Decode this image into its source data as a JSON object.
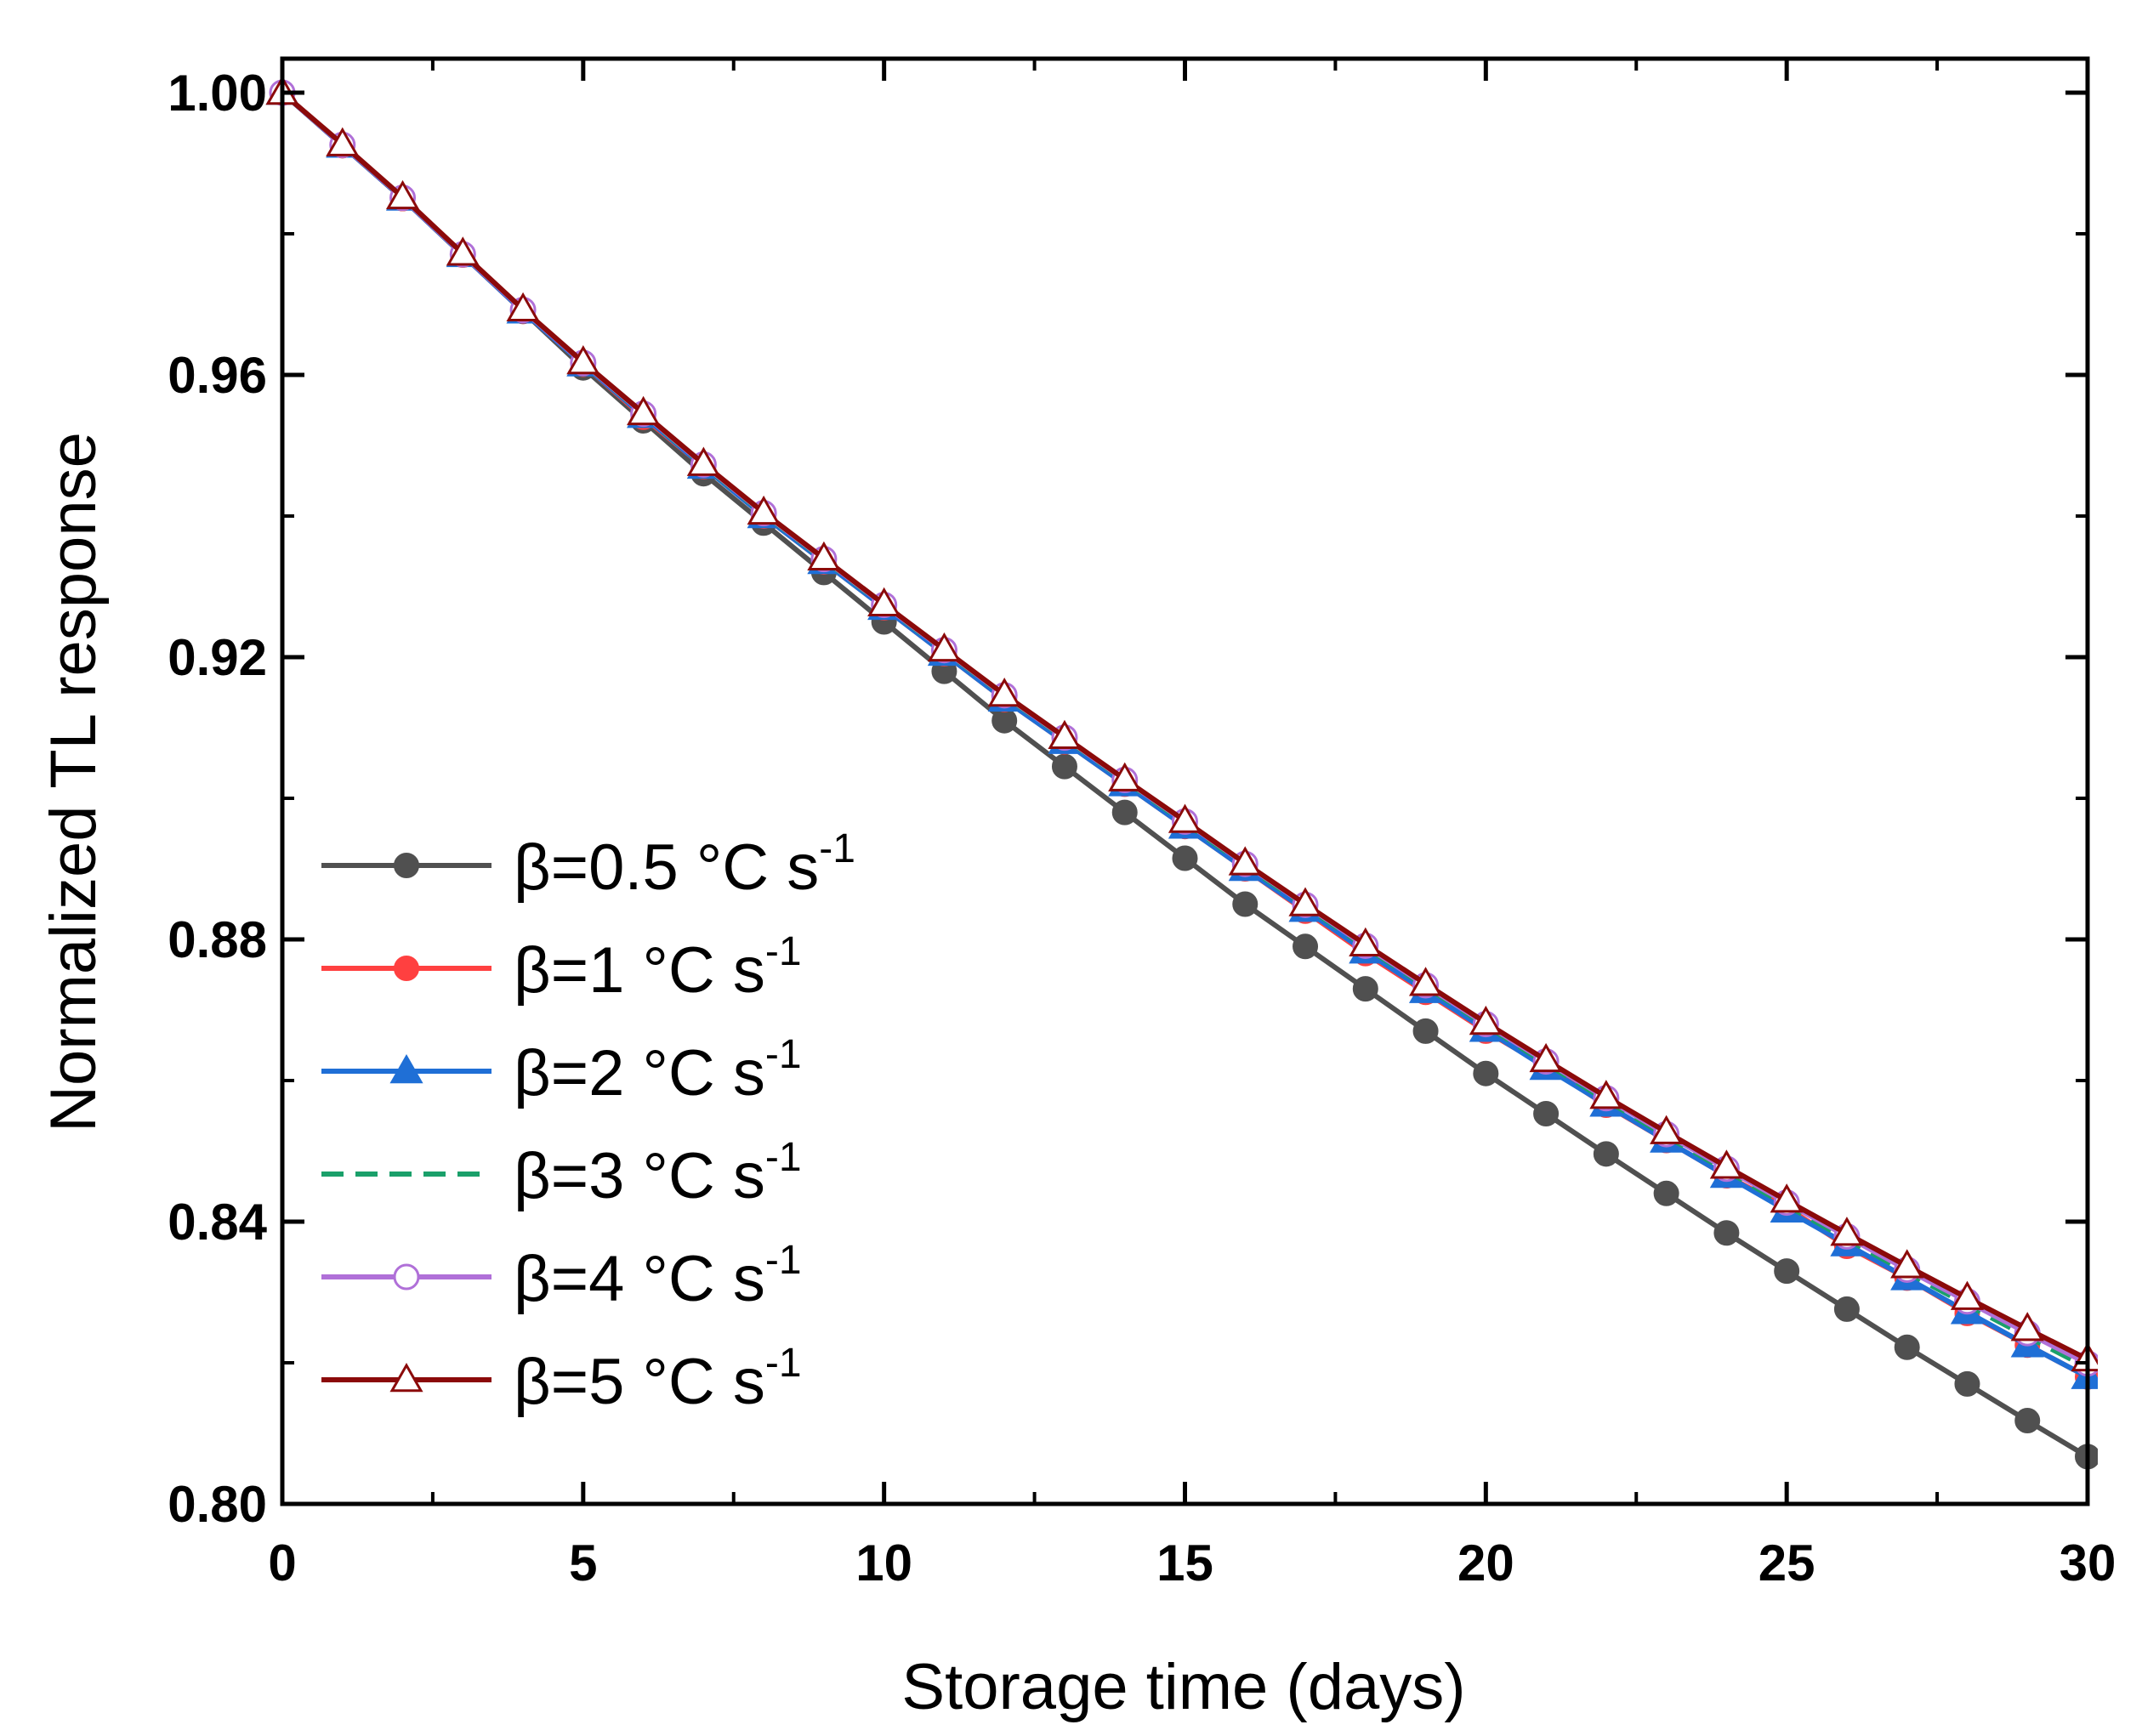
{
  "chart_data": {
    "type": "line",
    "title": "",
    "xlabel": "Storage time (days)",
    "ylabel": "Normalized TL response",
    "xlim": [
      0,
      30
    ],
    "ylim": [
      0.8,
      1.004
    ],
    "xticks": [
      0,
      5,
      10,
      15,
      20,
      25,
      30
    ],
    "xtick_labels": [
      "0",
      "5",
      "10",
      "15",
      "20",
      "25",
      "30"
    ],
    "yticks": [
      0.8,
      0.84,
      0.88,
      0.92,
      0.96,
      1.0
    ],
    "ytick_labels": [
      "0.80",
      "0.84",
      "0.88",
      "0.92",
      "0.96",
      "1.00"
    ],
    "grid": false,
    "legend_position": "bottom-left",
    "x": [
      0,
      1,
      2,
      3,
      4,
      5,
      6,
      7,
      8,
      9,
      10,
      11,
      12,
      13,
      14,
      15,
      16,
      17,
      18,
      19,
      20,
      21,
      22,
      23,
      24,
      25,
      26,
      27,
      28,
      29,
      30
    ],
    "series": [
      {
        "name": "β=0.5 °C s-1",
        "label_main": "β=0.5 °C s",
        "label_sup": "-1",
        "color": "#505050",
        "marker": "filled-circle",
        "line": "solid",
        "values": [
          1.0,
          0.9925,
          0.985,
          0.977,
          0.969,
          0.961,
          0.9535,
          0.946,
          0.939,
          0.932,
          0.925,
          0.918,
          0.911,
          0.9045,
          0.898,
          0.8915,
          0.885,
          0.879,
          0.873,
          0.867,
          0.861,
          0.8553,
          0.8496,
          0.844,
          0.8384,
          0.833,
          0.8276,
          0.8222,
          0.817,
          0.8118,
          0.8067
        ]
      },
      {
        "name": "β=1 °C s-1",
        "label_main": "β=1 °C s",
        "label_sup": "-1",
        "color": "#ff4040",
        "marker": "filled-circle",
        "line": "solid",
        "values": [
          1.0,
          0.9925,
          0.985,
          0.977,
          0.969,
          0.9615,
          0.954,
          0.947,
          0.94,
          0.9335,
          0.927,
          0.9205,
          0.914,
          0.908,
          0.902,
          0.896,
          0.89,
          0.884,
          0.878,
          0.8725,
          0.867,
          0.862,
          0.8565,
          0.8515,
          0.8465,
          0.842,
          0.8365,
          0.832,
          0.827,
          0.8225,
          0.818
        ]
      },
      {
        "name": "β=2 °C s-1",
        "label_main": "β=2 °C s",
        "label_sup": "-1",
        "color": "#1f6fd6",
        "marker": "filled-triangle",
        "line": "solid",
        "values": [
          1.0,
          0.9925,
          0.985,
          0.977,
          0.969,
          0.9615,
          0.9542,
          0.947,
          0.94,
          0.9335,
          0.927,
          0.9205,
          0.914,
          0.908,
          0.902,
          0.896,
          0.89,
          0.8842,
          0.8783,
          0.8727,
          0.8672,
          0.8618,
          0.8566,
          0.8515,
          0.8465,
          0.8416,
          0.8368,
          0.832,
          0.8272,
          0.8225,
          0.818
        ]
      },
      {
        "name": "β=3 °C s-1",
        "label_main": "β=3 °C s",
        "label_sup": "-1",
        "color": "#1aa06a",
        "marker": "none",
        "line": "dashed",
        "values": [
          1.0,
          0.9926,
          0.9851,
          0.9771,
          0.9692,
          0.9617,
          0.9544,
          0.9472,
          0.9403,
          0.9338,
          0.9273,
          0.9209,
          0.9145,
          0.9085,
          0.9025,
          0.8965,
          0.8905,
          0.8847,
          0.8789,
          0.8733,
          0.8678,
          0.8624,
          0.8572,
          0.8521,
          0.8472,
          0.8423,
          0.8375,
          0.8328,
          0.8282,
          0.8237,
          0.8193
        ]
      },
      {
        "name": "β=4 °C s-1",
        "label_main": "β=4 °C s",
        "label_sup": "-1",
        "color": "#b070d8",
        "marker": "open-circle",
        "line": "solid",
        "values": [
          1.0,
          0.9926,
          0.9851,
          0.9771,
          0.9692,
          0.9617,
          0.9545,
          0.9473,
          0.9404,
          0.9339,
          0.9274,
          0.921,
          0.9146,
          0.9086,
          0.9026,
          0.8967,
          0.8907,
          0.8849,
          0.8791,
          0.8735,
          0.868,
          0.8627,
          0.8575,
          0.8524,
          0.8475,
          0.8427,
          0.8379,
          0.8332,
          0.8287,
          0.8242,
          0.8199
        ]
      },
      {
        "name": "β=5 °C s-1",
        "label_main": "β=5 °C s",
        "label_sup": "-1",
        "color": "#8b0a0a",
        "marker": "open-triangle",
        "line": "solid",
        "values": [
          1.0,
          0.9927,
          0.9852,
          0.9772,
          0.9693,
          0.9618,
          0.9546,
          0.9474,
          0.9405,
          0.934,
          0.9275,
          0.9211,
          0.9147,
          0.9087,
          0.9027,
          0.8968,
          0.8908,
          0.885,
          0.8793,
          0.8737,
          0.8682,
          0.8629,
          0.8577,
          0.8527,
          0.8478,
          0.843,
          0.8383,
          0.8337,
          0.8292,
          0.8248,
          0.8205
        ]
      }
    ]
  }
}
